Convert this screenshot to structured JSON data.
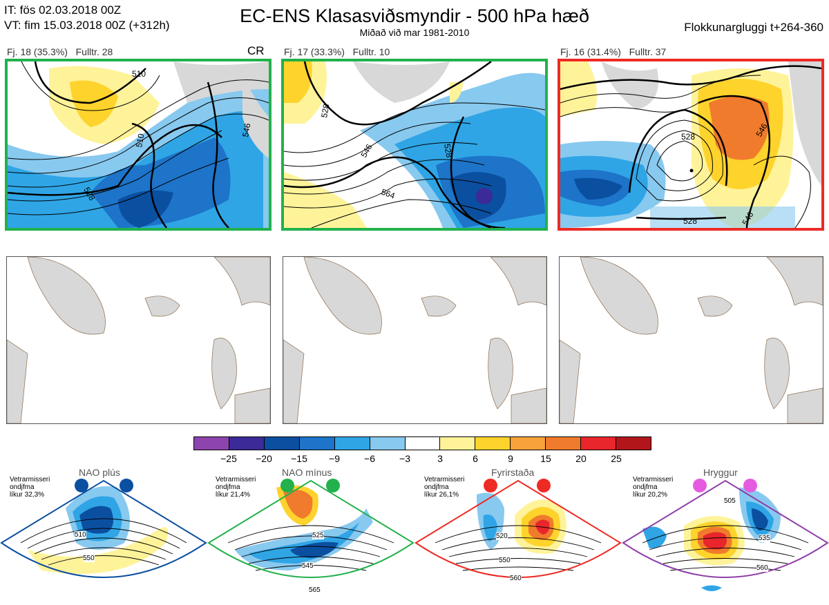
{
  "header": {
    "it_line": "IT: fös 02.03.2018 00Z",
    "vt_line": "VT: fim 15.03.2018 00Z  (+312h)",
    "title": "EC-ENS Klasasviðsmyndir - 500 hPa hæð",
    "subtitle": "Miðað við mar 1981-2010",
    "window": "Flokkunargluggi t+264-360"
  },
  "clusters": [
    {
      "label": "Fj. 18 (35.3%)",
      "rep": "Fulltr. 28",
      "tag": "CR",
      "frame_color": "#22b14c",
      "contours": [
        "510",
        "528",
        "546",
        "510"
      ]
    },
    {
      "label": "Fj. 17 (33.3%)",
      "rep": "Fulltr. 10",
      "tag": "",
      "frame_color": "#22b14c",
      "contours": [
        "528",
        "546",
        "564",
        "528"
      ]
    },
    {
      "label": "Fj. 16 (31.4%)",
      "rep": "Fulltr. 37",
      "tag": "",
      "frame_color": "#ee2a24",
      "contours": [
        "528",
        "546",
        "528",
        "546"
      ]
    }
  ],
  "colorbar": {
    "colors": [
      "#8e44ad",
      "#3b2a98",
      "#0b4fa0",
      "#1d74c9",
      "#2fa5e6",
      "#88c9ef",
      "#ffffff",
      "#fff39a",
      "#fed32c",
      "#f7a23a",
      "#f07b2c",
      "#e8262b",
      "#b2161b"
    ],
    "ticks": [
      "−25",
      "−20",
      "−15",
      "−9",
      "−6",
      "−3",
      "3",
      "6",
      "9",
      "15",
      "20",
      "25"
    ]
  },
  "regimes": [
    {
      "name": "NAO plús",
      "note": [
        "Vetrarmisseri",
        "ondjfma",
        "líkur 32,3%"
      ],
      "color": "#0b4fa0",
      "contours": [
        "510",
        "550"
      ]
    },
    {
      "name": "NAO mínus",
      "note": [
        "Vetrarmisseri",
        "ondjfma",
        "líkur 21,4%"
      ],
      "color": "#22b14c",
      "contours": [
        "525",
        "545",
        "565"
      ]
    },
    {
      "name": "Fyrirstaða",
      "note": [
        "Vetrarmisseri",
        "ondjfma",
        "líkur 26,1%"
      ],
      "color": "#ee2a24",
      "contours": [
        "520",
        "550",
        "560"
      ]
    },
    {
      "name": "Hryggur",
      "note": [
        "Vetrarmisseri",
        "ondjfma",
        "líkur 20,2%"
      ],
      "color": "#e55be0",
      "contours": [
        "505",
        "535",
        "560"
      ]
    }
  ]
}
